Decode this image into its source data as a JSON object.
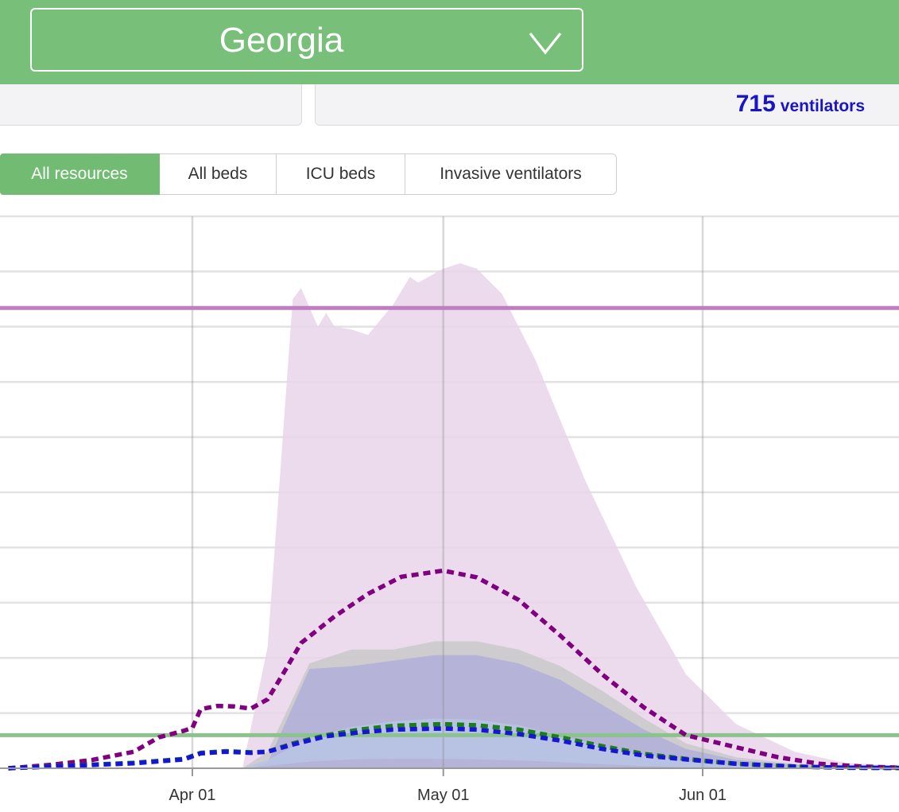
{
  "header": {
    "state": "Georgia",
    "chevron_icon": "chevron-down-icon"
  },
  "stats": {
    "ventilators_value": "715",
    "ventilators_unit": "ventilators",
    "color": "#1a14c8"
  },
  "tabs": [
    {
      "label": "All resources",
      "active": true
    },
    {
      "label": "All beds",
      "active": false
    },
    {
      "label": "ICU beds",
      "active": false
    },
    {
      "label": "Invasive ventilators",
      "active": false
    }
  ],
  "colors": {
    "brand_green": "#78c079",
    "all_beds": "#800080",
    "icu_beds": "#1d7d1d",
    "ventilators": "#1515d6",
    "all_beds_band": "#e8d5ea",
    "icu_band": "#c9c9c9",
    "vent_band": "#b0aed8"
  },
  "chart_data": {
    "type": "area",
    "x_start": "2020-03-10",
    "x_end": "2020-06-25",
    "xticks": [
      "Apr 01",
      "May 01",
      "Jun 01"
    ],
    "xtick_dates": [
      "2020-04-01",
      "2020-05-01",
      "2020-06-01"
    ],
    "ylim": [
      0,
      10000
    ],
    "gridlines": [
      1000,
      2000,
      3000,
      4000,
      5000,
      6000,
      7000,
      8000,
      9000,
      10000
    ],
    "reference_lines": [
      {
        "value": 8340,
        "color": "#c07ec2"
      },
      {
        "value": 600,
        "color": "#8cc28c"
      }
    ],
    "bands": [
      {
        "color": "#e8d5ea",
        "x": [
          "2020-03-10",
          "2020-04-05",
          "2020-04-07",
          "2020-04-10",
          "2020-04-13",
          "2020-04-14",
          "2020-04-16",
          "2020-04-17",
          "2020-04-18",
          "2020-04-20",
          "2020-04-22",
          "2020-04-25",
          "2020-04-27",
          "2020-04-28",
          "2020-05-01",
          "2020-05-03",
          "2020-05-05",
          "2020-05-08",
          "2020-05-12",
          "2020-05-18",
          "2020-05-24",
          "2020-05-30",
          "2020-06-05",
          "2020-06-12",
          "2020-06-18",
          "2020-06-25"
        ],
        "upper": [
          0,
          0,
          0,
          2200,
          8500,
          8700,
          8000,
          8250,
          8000,
          7950,
          7850,
          8400,
          8900,
          8800,
          9050,
          9150,
          9050,
          8600,
          7400,
          5200,
          3300,
          1700,
          800,
          300,
          100,
          40
        ],
        "lower": [
          0,
          0,
          0,
          0,
          0,
          0,
          0,
          0,
          0,
          0,
          0,
          0,
          0,
          0,
          0,
          0,
          0,
          0,
          0,
          0,
          0,
          0,
          0,
          0,
          0,
          0
        ]
      },
      {
        "color": "#c9c9c9",
        "x": [
          "2020-03-10",
          "2020-04-07",
          "2020-04-10",
          "2020-04-15",
          "2020-04-20",
          "2020-04-25",
          "2020-04-30",
          "2020-05-05",
          "2020-05-10",
          "2020-05-15",
          "2020-05-20",
          "2020-05-25",
          "2020-05-30",
          "2020-06-05",
          "2020-06-12",
          "2020-06-18",
          "2020-06-25"
        ],
        "upper": [
          0,
          0,
          300,
          1900,
          2150,
          2150,
          2300,
          2300,
          2150,
          1850,
          1400,
          900,
          450,
          200,
          80,
          30,
          10
        ],
        "lower": [
          0,
          0,
          0,
          0,
          0,
          0,
          0,
          0,
          0,
          0,
          0,
          0,
          0,
          0,
          0,
          0,
          0
        ]
      },
      {
        "color": "#b0aed8",
        "x": [
          "2020-03-10",
          "2020-04-08",
          "2020-04-10",
          "2020-04-15",
          "2020-04-20",
          "2020-04-25",
          "2020-04-30",
          "2020-05-05",
          "2020-05-10",
          "2020-05-15",
          "2020-05-20",
          "2020-05-25",
          "2020-05-30",
          "2020-06-05",
          "2020-06-12",
          "2020-06-18",
          "2020-06-25"
        ],
        "upper": [
          0,
          0,
          100,
          1800,
          1850,
          1950,
          2050,
          2050,
          1900,
          1600,
          1150,
          700,
          350,
          150,
          60,
          25,
          10
        ],
        "lower": [
          0,
          0,
          0,
          0,
          0,
          0,
          0,
          0,
          0,
          0,
          0,
          0,
          0,
          0,
          0,
          0,
          0
        ]
      },
      {
        "color": "#b8c4e4",
        "x": [
          "2020-03-10",
          "2020-04-07",
          "2020-04-10",
          "2020-04-15",
          "2020-04-20",
          "2020-04-25",
          "2020-04-30",
          "2020-05-05",
          "2020-05-10",
          "2020-05-15",
          "2020-05-20",
          "2020-05-25",
          "2020-05-30",
          "2020-06-05",
          "2020-06-12",
          "2020-06-25"
        ],
        "upper": [
          0,
          0,
          150,
          550,
          750,
          850,
          900,
          880,
          780,
          600,
          400,
          250,
          120,
          60,
          20,
          5
        ],
        "lower": [
          0,
          0,
          40,
          120,
          160,
          170,
          170,
          160,
          140,
          110,
          70,
          40,
          20,
          10,
          5,
          0
        ]
      }
    ],
    "series": [
      {
        "color": "#800080",
        "x": [
          "2020-03-10",
          "2020-03-15",
          "2020-03-20",
          "2020-03-25",
          "2020-03-28",
          "2020-03-31",
          "2020-04-01",
          "2020-04-02",
          "2020-04-04",
          "2020-04-06",
          "2020-04-08",
          "2020-04-10",
          "2020-04-12",
          "2020-04-14",
          "2020-04-18",
          "2020-04-22",
          "2020-04-26",
          "2020-05-01",
          "2020-05-05",
          "2020-05-10",
          "2020-05-15",
          "2020-05-20",
          "2020-05-25",
          "2020-05-30",
          "2020-06-05",
          "2020-06-10",
          "2020-06-15",
          "2020-06-20",
          "2020-06-25"
        ],
        "y": [
          0,
          60,
          150,
          300,
          560,
          680,
          730,
          1070,
          1130,
          1120,
          1080,
          1250,
          1750,
          2270,
          2750,
          3160,
          3470,
          3580,
          3460,
          3050,
          2400,
          1700,
          1100,
          600,
          380,
          200,
          80,
          30,
          10
        ]
      },
      {
        "color": "#1d7d1d",
        "x": [
          "2020-03-10",
          "2020-03-25",
          "2020-03-31",
          "2020-04-02",
          "2020-04-05",
          "2020-04-08",
          "2020-04-10",
          "2020-04-13",
          "2020-04-17",
          "2020-04-21",
          "2020-04-25",
          "2020-05-01",
          "2020-05-05",
          "2020-05-10",
          "2020-05-15",
          "2020-05-20",
          "2020-05-25",
          "2020-05-30",
          "2020-06-05",
          "2020-06-12",
          "2020-06-18",
          "2020-06-25"
        ],
        "y": [
          0,
          100,
          170,
          280,
          310,
          290,
          300,
          450,
          600,
          700,
          770,
          800,
          780,
          700,
          560,
          400,
          260,
          170,
          80,
          30,
          10,
          5
        ]
      },
      {
        "color": "#1515d6",
        "x": [
          "2020-03-10",
          "2020-03-25",
          "2020-03-31",
          "2020-04-02",
          "2020-04-05",
          "2020-04-08",
          "2020-04-10",
          "2020-04-13",
          "2020-04-17",
          "2020-04-21",
          "2020-04-25",
          "2020-05-01",
          "2020-05-05",
          "2020-05-10",
          "2020-05-15",
          "2020-05-20",
          "2020-05-25",
          "2020-05-30",
          "2020-06-05",
          "2020-06-12",
          "2020-06-18",
          "2020-06-25"
        ],
        "y": [
          0,
          90,
          160,
          270,
          300,
          280,
          300,
          430,
          580,
          650,
          700,
          720,
          700,
          620,
          500,
          350,
          230,
          160,
          80,
          30,
          10,
          5
        ]
      }
    ]
  }
}
